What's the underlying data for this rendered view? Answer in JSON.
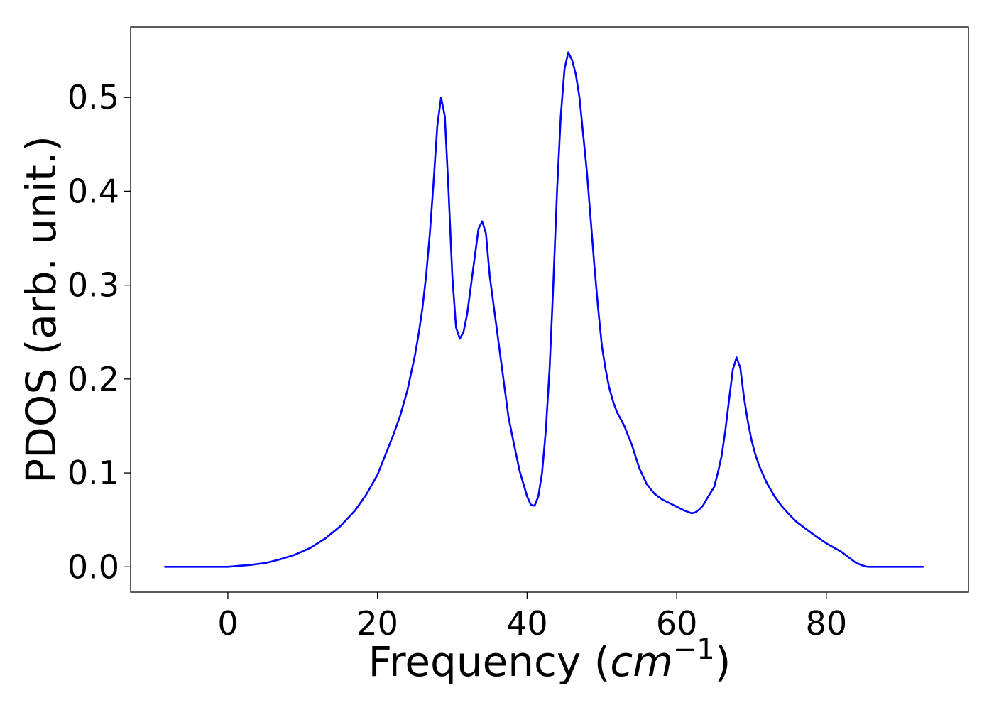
{
  "chart_data": {
    "type": "line",
    "xlabel_main": "Frequency (",
    "xlabel_math_base": "cm",
    "xlabel_math_exp": "−1",
    "xlabel_close": ")",
    "ylabel": "PDOS (arb. unit.)",
    "xlim": [
      -13,
      99
    ],
    "ylim": [
      -0.027,
      0.575
    ],
    "x_ticks": [
      0,
      20,
      40,
      60,
      80
    ],
    "x_tick_labels": [
      "0",
      "20",
      "40",
      "60",
      "80"
    ],
    "y_ticks": [
      0.0,
      0.1,
      0.2,
      0.3,
      0.4,
      0.5
    ],
    "y_tick_labels": [
      "0.0",
      "0.1",
      "0.2",
      "0.3",
      "0.4",
      "0.5"
    ],
    "grid": false,
    "line_color": "#0000ff",
    "series": [
      {
        "x": [
          -8.5,
          -6,
          -4,
          -2,
          0,
          1.5,
          3,
          5,
          7,
          9,
          11,
          13,
          15,
          17,
          18.5,
          20,
          21,
          22,
          23,
          24,
          25,
          25.5,
          26,
          26.5,
          27,
          27.5,
          28,
          28.5,
          29,
          29.5,
          30,
          30.5,
          31,
          31.5,
          32,
          32.5,
          33,
          33.5,
          34,
          34.5,
          35,
          35.5,
          36,
          36.5,
          37,
          37.5,
          38,
          39,
          40,
          40.5,
          41,
          41.5,
          42,
          42.5,
          43,
          43.5,
          44,
          44.5,
          45,
          45.5,
          46,
          46.5,
          47,
          47.5,
          48,
          48.5,
          49,
          49.5,
          50,
          50.5,
          51,
          51.5,
          52,
          53,
          54,
          55,
          56,
          57,
          58,
          59,
          60,
          61,
          62,
          62.5,
          63,
          63.5,
          64,
          65,
          65.5,
          66,
          66.5,
          67,
          67.5,
          68,
          68.5,
          69,
          69.5,
          70,
          70.5,
          71,
          72,
          73,
          74,
          75,
          76,
          77,
          78,
          80,
          82,
          83,
          84,
          85,
          85.5,
          86,
          87,
          88,
          90,
          93
        ],
        "y": [
          0.0,
          0.0,
          0.0,
          0.0,
          0.0,
          0.001,
          0.002,
          0.004,
          0.008,
          0.013,
          0.02,
          0.03,
          0.043,
          0.06,
          0.077,
          0.098,
          0.118,
          0.138,
          0.16,
          0.188,
          0.225,
          0.248,
          0.275,
          0.31,
          0.355,
          0.41,
          0.47,
          0.5,
          0.48,
          0.4,
          0.31,
          0.255,
          0.243,
          0.25,
          0.27,
          0.3,
          0.33,
          0.36,
          0.368,
          0.355,
          0.31,
          0.28,
          0.25,
          0.22,
          0.19,
          0.16,
          0.14,
          0.102,
          0.075,
          0.066,
          0.065,
          0.075,
          0.1,
          0.145,
          0.21,
          0.3,
          0.4,
          0.48,
          0.53,
          0.548,
          0.54,
          0.525,
          0.5,
          0.46,
          0.42,
          0.37,
          0.32,
          0.275,
          0.235,
          0.21,
          0.19,
          0.176,
          0.165,
          0.15,
          0.13,
          0.105,
          0.088,
          0.078,
          0.072,
          0.068,
          0.064,
          0.06,
          0.057,
          0.058,
          0.061,
          0.065,
          0.072,
          0.085,
          0.1,
          0.118,
          0.145,
          0.178,
          0.21,
          0.223,
          0.212,
          0.18,
          0.155,
          0.135,
          0.12,
          0.108,
          0.09,
          0.076,
          0.065,
          0.056,
          0.048,
          0.042,
          0.036,
          0.025,
          0.016,
          0.01,
          0.004,
          0.001,
          0.0,
          0.0,
          0.0,
          0.0,
          0.0,
          0.0
        ]
      }
    ]
  }
}
